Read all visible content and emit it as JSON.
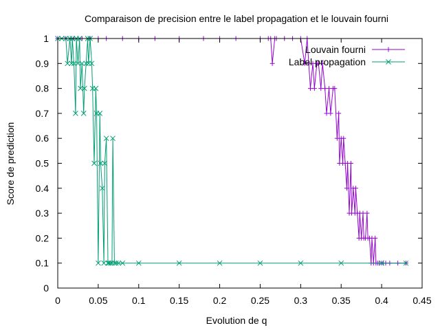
{
  "chart_data": {
    "type": "line",
    "title": "Comparaison de precision entre le label propagation et le louvain fourni",
    "xlabel": "Evolution de q",
    "ylabel": "Score de prediction",
    "xlim": [
      0,
      0.45
    ],
    "ylim": [
      0,
      1
    ],
    "x_ticks": [
      "0",
      "0.05",
      "0.1",
      "0.15",
      "0.2",
      "0.25",
      "0.3",
      "0.35",
      "0.4",
      "0.45"
    ],
    "y_ticks": [
      "0",
      "0.1",
      "0.2",
      "0.3",
      "0.4",
      "0.5",
      "0.6",
      "0.7",
      "0.8",
      "0.9",
      "1"
    ],
    "grid": false,
    "legend_position": "top-right",
    "series": [
      {
        "name": "Louvain fourni",
        "color": "#9400d3",
        "marker": "plus",
        "x": [
          0.0,
          0.01,
          0.02,
          0.03,
          0.04,
          0.05,
          0.06,
          0.08,
          0.1,
          0.12,
          0.15,
          0.18,
          0.2,
          0.22,
          0.25,
          0.26,
          0.263,
          0.265,
          0.268,
          0.27,
          0.28,
          0.29,
          0.3,
          0.305,
          0.308,
          0.31,
          0.312,
          0.315,
          0.317,
          0.32,
          0.322,
          0.325,
          0.327,
          0.33,
          0.332,
          0.335,
          0.337,
          0.34,
          0.342,
          0.345,
          0.347,
          0.348,
          0.35,
          0.352,
          0.353,
          0.355,
          0.357,
          0.358,
          0.36,
          0.362,
          0.363,
          0.365,
          0.367,
          0.368,
          0.37,
          0.372,
          0.373,
          0.375,
          0.377,
          0.378,
          0.38,
          0.382,
          0.383,
          0.385,
          0.387,
          0.388,
          0.39,
          0.392,
          0.393,
          0.395,
          0.397,
          0.4,
          0.402,
          0.405,
          0.41,
          0.42,
          0.43
        ],
        "y": [
          1,
          1,
          1,
          1,
          1,
          1,
          1,
          1,
          1,
          1,
          1,
          1,
          1,
          1,
          1,
          1,
          1,
          0.9,
          1,
          1,
          1,
          1,
          1,
          0.9,
          1,
          0.9,
          0.8,
          0.9,
          0.8,
          0.9,
          0.9,
          0.8,
          0.9,
          0.8,
          0.7,
          0.8,
          0.7,
          0.8,
          0.8,
          0.6,
          0.7,
          0.5,
          0.6,
          0.5,
          0.6,
          0.5,
          0.4,
          0.5,
          0.3,
          0.5,
          0.3,
          0.4,
          0.3,
          0.4,
          0.3,
          0.2,
          0.3,
          0.2,
          0.3,
          0.2,
          0.2,
          0.3,
          0.2,
          0.2,
          0.1,
          0.2,
          0.1,
          0.2,
          0.1,
          0.1,
          0.1,
          0.1,
          0.1,
          0.1,
          0.1,
          0.1,
          0.1
        ]
      },
      {
        "name": "Label propagation",
        "color": "#009e73",
        "marker": "cross",
        "x": [
          0.0,
          0.005,
          0.01,
          0.012,
          0.015,
          0.017,
          0.018,
          0.02,
          0.022,
          0.023,
          0.025,
          0.027,
          0.028,
          0.03,
          0.032,
          0.033,
          0.035,
          0.037,
          0.038,
          0.04,
          0.042,
          0.043,
          0.045,
          0.047,
          0.048,
          0.05,
          0.052,
          0.053,
          0.055,
          0.057,
          0.058,
          0.06,
          0.062,
          0.063,
          0.065,
          0.067,
          0.068,
          0.07,
          0.072,
          0.075,
          0.08,
          0.1,
          0.15,
          0.2,
          0.25,
          0.3,
          0.35,
          0.4,
          0.43
        ],
        "y": [
          1,
          1,
          1,
          0.9,
          1,
          0.9,
          1,
          0.9,
          0.7,
          1,
          0.9,
          1,
          0.8,
          0.9,
          0.7,
          0.8,
          0.9,
          1,
          0.9,
          1,
          0.9,
          0.8,
          0.5,
          0.8,
          0.7,
          0.1,
          0.7,
          0.5,
          0.4,
          0.1,
          0.5,
          0.6,
          0.1,
          0.1,
          0.1,
          0.1,
          0.6,
          0.1,
          0.1,
          0.1,
          0.1,
          0.1,
          0.1,
          0.1,
          0.1,
          0.1,
          0.1,
          0.1,
          0.1
        ]
      }
    ]
  }
}
